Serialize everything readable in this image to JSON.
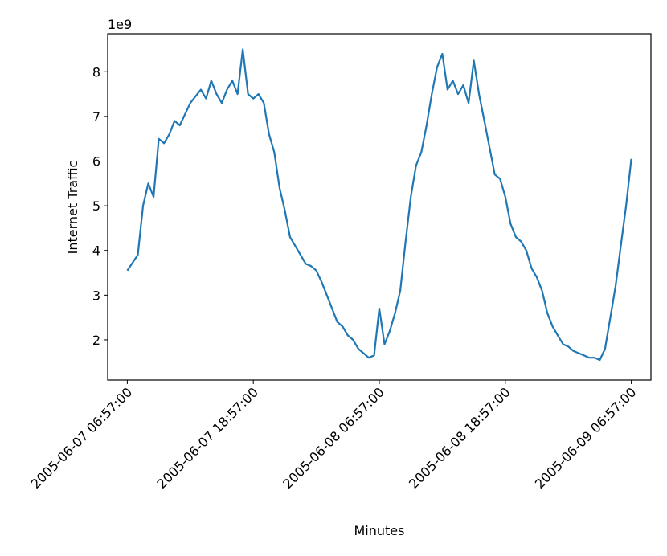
{
  "chart_data": {
    "type": "line",
    "title": "",
    "xlabel": "Minutes",
    "ylabel": "Internet Traffic",
    "offset_label": "1e9",
    "y_scale_factor": 1000000000,
    "ylim": [
      1.1,
      8.85
    ],
    "y_ticks": [
      2,
      3,
      4,
      5,
      6,
      7,
      8
    ],
    "y_tick_labels": [
      "2",
      "3",
      "4",
      "5",
      "6",
      "7",
      "8"
    ],
    "xlim": [
      "2005-06-07 05:05:00",
      "2005-06-09 08:49:00"
    ],
    "x_ticks": [
      "2005-06-07 06:57:00",
      "2005-06-07 18:57:00",
      "2005-06-08 06:57:00",
      "2005-06-08 18:57:00",
      "2005-06-09 06:57:00"
    ],
    "x_tick_labels": [
      "2005-06-07 06:57:00",
      "2005-06-07 18:57:00",
      "2005-06-08 06:57:00",
      "2005-06-08 18:57:00",
      "2005-06-09 06:57:00"
    ],
    "grid": false,
    "color": "#1f77b4",
    "series": [
      {
        "x": [
          "2005-06-07 06:57:00",
          "2005-06-07 07:57:00",
          "2005-06-07 08:27:00",
          "2005-06-07 08:57:00",
          "2005-06-07 09:27:00",
          "2005-06-07 09:57:00",
          "2005-06-07 10:27:00",
          "2005-06-07 10:57:00",
          "2005-06-07 11:27:00",
          "2005-06-07 11:57:00",
          "2005-06-07 12:57:00",
          "2005-06-07 13:57:00",
          "2005-06-07 14:27:00",
          "2005-06-07 14:57:00",
          "2005-06-07 15:27:00",
          "2005-06-07 15:57:00",
          "2005-06-07 16:27:00",
          "2005-06-07 16:57:00",
          "2005-06-07 17:27:00",
          "2005-06-07 17:57:00",
          "2005-06-07 18:27:00",
          "2005-06-07 18:57:00",
          "2005-06-07 19:27:00",
          "2005-06-07 19:57:00",
          "2005-06-07 20:27:00",
          "2005-06-07 20:57:00",
          "2005-06-07 21:27:00",
          "2005-06-07 21:57:00",
          "2005-06-07 22:27:00",
          "2005-06-07 22:57:00",
          "2005-06-07 23:27:00",
          "2005-06-07 23:57:00",
          "2005-06-08 00:27:00",
          "2005-06-08 00:57:00",
          "2005-06-08 01:27:00",
          "2005-06-08 01:57:00",
          "2005-06-08 02:27:00",
          "2005-06-08 02:57:00",
          "2005-06-08 03:27:00",
          "2005-06-08 03:57:00",
          "2005-06-08 04:27:00",
          "2005-06-08 04:57:00",
          "2005-06-08 05:27:00",
          "2005-06-08 05:57:00",
          "2005-06-08 06:27:00",
          "2005-06-08 06:57:00",
          "2005-06-08 07:27:00",
          "2005-06-08 07:57:00",
          "2005-06-08 08:27:00",
          "2005-06-08 08:57:00",
          "2005-06-08 09:27:00",
          "2005-06-08 09:57:00",
          "2005-06-08 10:27:00",
          "2005-06-08 10:57:00",
          "2005-06-08 11:27:00",
          "2005-06-08 11:57:00",
          "2005-06-08 12:27:00",
          "2005-06-08 12:57:00",
          "2005-06-08 13:27:00",
          "2005-06-08 13:57:00",
          "2005-06-08 14:27:00",
          "2005-06-08 14:57:00",
          "2005-06-08 15:27:00",
          "2005-06-08 15:57:00",
          "2005-06-08 16:27:00",
          "2005-06-08 16:57:00",
          "2005-06-08 17:27:00",
          "2005-06-08 17:57:00",
          "2005-06-08 18:27:00",
          "2005-06-08 18:57:00",
          "2005-06-08 19:27:00",
          "2005-06-08 19:57:00",
          "2005-06-08 20:27:00",
          "2005-06-08 20:57:00",
          "2005-06-08 21:27:00",
          "2005-06-08 21:57:00",
          "2005-06-08 22:27:00",
          "2005-06-08 22:57:00",
          "2005-06-08 23:27:00",
          "2005-06-08 23:57:00",
          "2005-06-09 00:27:00",
          "2005-06-09 00:57:00",
          "2005-06-09 01:27:00",
          "2005-06-09 01:57:00",
          "2005-06-09 02:27:00",
          "2005-06-09 02:57:00",
          "2005-06-09 03:27:00",
          "2005-06-09 03:57:00",
          "2005-06-09 04:27:00",
          "2005-06-09 04:57:00",
          "2005-06-09 05:27:00",
          "2005-06-09 05:57:00",
          "2005-06-09 06:27:00",
          "2005-06-09 06:57:00"
        ],
        "y": [
          3.55,
          3.9,
          5.0,
          5.5,
          5.2,
          6.5,
          6.4,
          6.6,
          6.9,
          6.8,
          7.3,
          7.6,
          7.4,
          7.8,
          7.5,
          7.3,
          7.6,
          7.8,
          7.5,
          8.5,
          7.5,
          7.4,
          7.5,
          7.3,
          6.6,
          6.2,
          5.4,
          4.9,
          4.3,
          4.1,
          3.9,
          3.7,
          3.65,
          3.55,
          3.3,
          3.0,
          2.7,
          2.4,
          2.3,
          2.1,
          2.0,
          1.8,
          1.7,
          1.6,
          1.65,
          2.7,
          1.9,
          2.2,
          2.6,
          3.1,
          4.2,
          5.2,
          5.9,
          6.2,
          6.8,
          7.5,
          8.1,
          8.4,
          7.6,
          7.8,
          7.5,
          7.7,
          7.3,
          8.25,
          7.5,
          6.9,
          6.3,
          5.7,
          5.6,
          5.2,
          4.6,
          4.3,
          4.2,
          4.0,
          3.6,
          3.4,
          3.1,
          2.6,
          2.3,
          2.1,
          1.9,
          1.85,
          1.75,
          1.7,
          1.65,
          1.6,
          1.6,
          1.55,
          1.8,
          2.5,
          3.2,
          4.1,
          5.0,
          6.05
        ]
      }
    ]
  }
}
